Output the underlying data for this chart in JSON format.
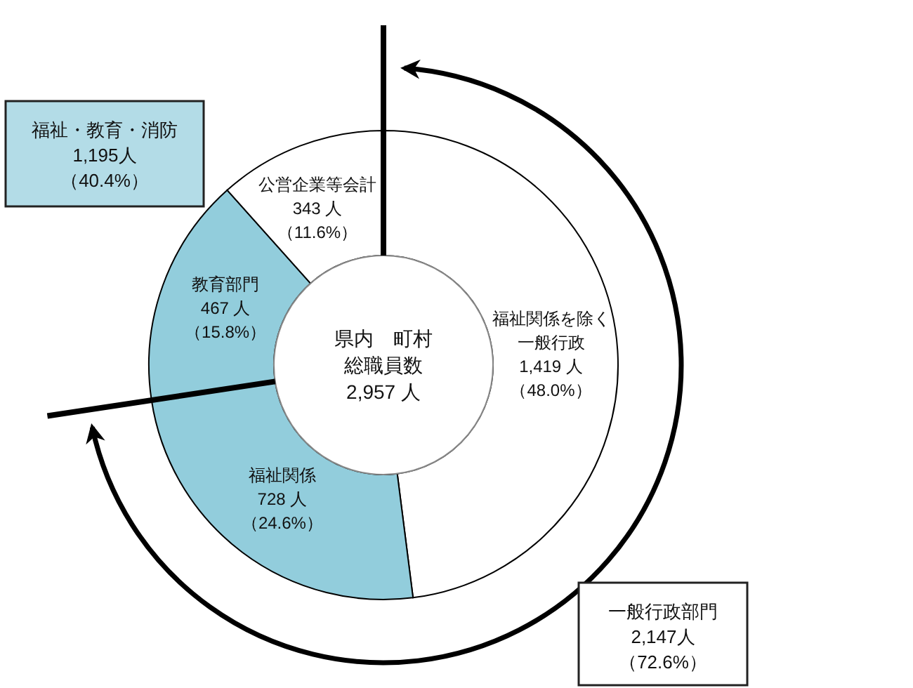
{
  "chart_data": {
    "type": "donut",
    "title": "県内　町村総職員数2,957 人",
    "categories": [
      "福祉関係を除く一般行政",
      "福祉関係",
      "教育部門",
      "公営企業等会計"
    ],
    "values": [
      1419,
      728,
      467,
      343
    ],
    "colors": [
      "#ffffff",
      "#92cddc",
      "#92cddc",
      "#ffffff"
    ],
    "value_labels": [
      "1,419 人（48.0%）",
      "728 人（24.6%）",
      "467 人（15.8%）",
      "343 人（11.6%）"
    ],
    "annotations": [
      "福祉・教育・消防1,195人（40.4%）",
      "一般行政部門2,147人（72.6%）"
    ]
  }
}
